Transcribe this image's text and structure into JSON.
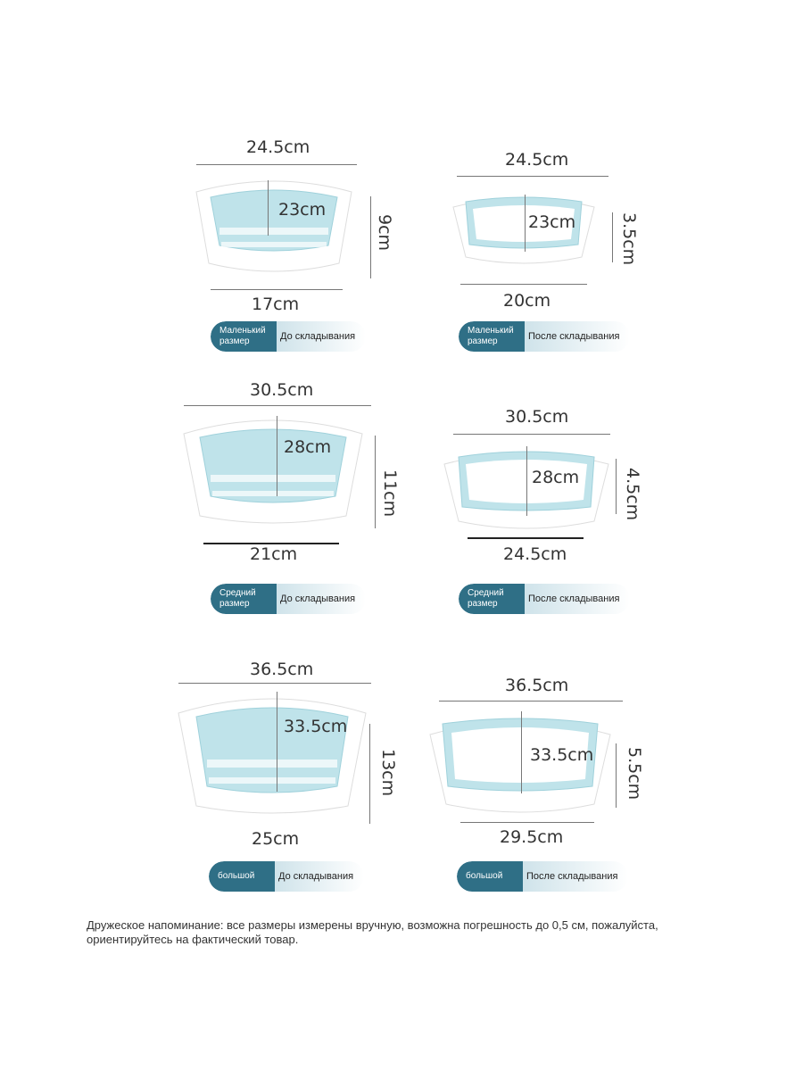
{
  "products": [
    {
      "top_width": "24.5cm",
      "inner": "23cm",
      "height": "9cm",
      "bottom": "17cm",
      "size": "Маленький размер",
      "state": "До складывания",
      "folded": false
    },
    {
      "top_width": "24.5cm",
      "inner": "23cm",
      "height": "3.5cm",
      "bottom": "20cm",
      "size": "Маленький размер",
      "state": "После складывания",
      "folded": true
    },
    {
      "top_width": "30.5cm",
      "inner": "28cm",
      "height": "11cm",
      "bottom": "21cm",
      "size": "Средний размер",
      "state": "До складывания",
      "folded": false
    },
    {
      "top_width": "30.5cm",
      "inner": "28cm",
      "height": "4.5cm",
      "bottom": "24.5cm",
      "size": "Средний размер",
      "state": "После складывания",
      "folded": true
    },
    {
      "top_width": "36.5cm",
      "inner": "33.5cm",
      "height": "13cm",
      "bottom": "25cm",
      "size": "большой",
      "state": "До складывания",
      "folded": false
    },
    {
      "top_width": "36.5cm",
      "inner": "33.5cm",
      "height": "5.5cm",
      "bottom": "29.5cm",
      "size": "большой",
      "state": "После складывания",
      "folded": true
    }
  ],
  "note": "Дружеское напоминание: все размеры измерены вручную, возможна погрешность до 0,5 см, пожалуйста, ориентируйтесь на фактический товар.",
  "colors": {
    "basin_blue": "#bfe3ea",
    "rim_white": "#ffffff",
    "badge_dark": "#2f6f86"
  }
}
